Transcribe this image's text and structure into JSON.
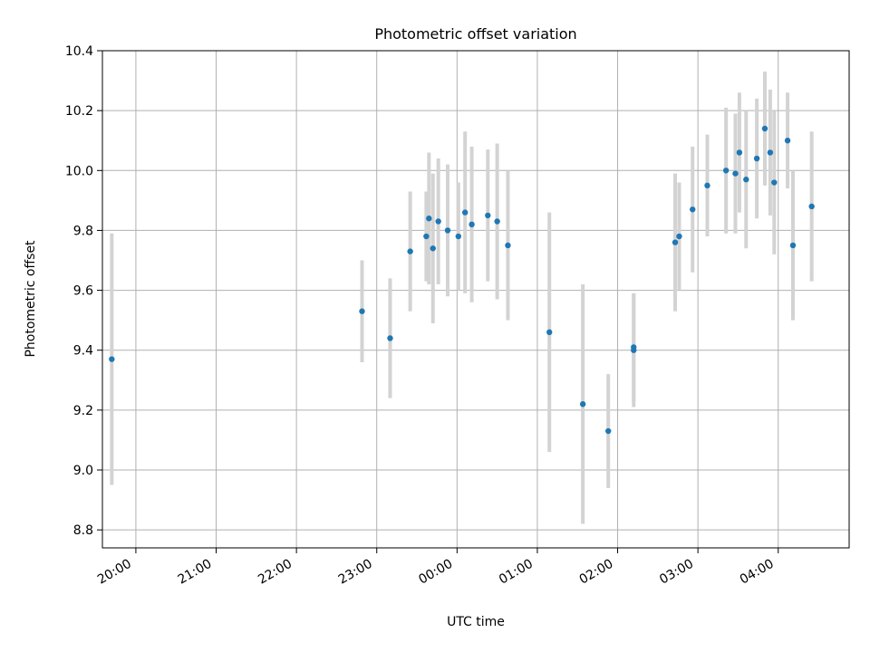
{
  "chart_data": {
    "type": "scatter",
    "title": "Photometric offset variation",
    "xlabel": "UTC time",
    "ylabel": "Photometric offset",
    "x_format": "HH:MM",
    "x_range": [
      "19:35",
      "04:53"
    ],
    "x_ticks": [
      "20:00",
      "21:00",
      "22:00",
      "23:00",
      "00:00",
      "01:00",
      "02:00",
      "03:00",
      "04:00"
    ],
    "ylim": [
      8.74,
      10.4
    ],
    "y_ticks": [
      8.8,
      9.0,
      9.2,
      9.4,
      9.6,
      9.8,
      10.0,
      10.2,
      10.4
    ],
    "grid": true,
    "colors": {
      "points": "#1f77b4",
      "errorbars": "#d3d3d3"
    },
    "series": [
      {
        "points": [
          {
            "x": "19:42",
            "y": 9.37,
            "err": 0.42
          },
          {
            "x": "22:49",
            "y": 9.53,
            "err": 0.17
          },
          {
            "x": "23:10",
            "y": 9.44,
            "err": 0.2
          },
          {
            "x": "23:25",
            "y": 9.73,
            "err": 0.2
          },
          {
            "x": "23:37",
            "y": 9.78,
            "err": 0.15
          },
          {
            "x": "23:39",
            "y": 9.84,
            "err": 0.22
          },
          {
            "x": "23:42",
            "y": 9.74,
            "err": 0.25
          },
          {
            "x": "23:46",
            "y": 9.83,
            "err": 0.21
          },
          {
            "x": "23:53",
            "y": 9.8,
            "err": 0.22
          },
          {
            "x": "00:01",
            "y": 9.78,
            "err": 0.18
          },
          {
            "x": "00:06",
            "y": 9.86,
            "err": 0.27
          },
          {
            "x": "00:11",
            "y": 9.82,
            "err": 0.26
          },
          {
            "x": "00:23",
            "y": 9.85,
            "err": 0.22
          },
          {
            "x": "00:30",
            "y": 9.83,
            "err": 0.26
          },
          {
            "x": "00:38",
            "y": 9.75,
            "err": 0.25
          },
          {
            "x": "01:09",
            "y": 9.46,
            "err": 0.4
          },
          {
            "x": "01:34",
            "y": 9.22,
            "err": 0.4
          },
          {
            "x": "01:53",
            "y": 9.13,
            "err": 0.19
          },
          {
            "x": "02:12",
            "y": 9.4,
            "err": 0.19
          },
          {
            "x": "02:12",
            "y": 9.41,
            "err": 0.18
          },
          {
            "x": "02:43",
            "y": 9.76,
            "err": 0.23
          },
          {
            "x": "02:46",
            "y": 9.78,
            "err": 0.18
          },
          {
            "x": "02:56",
            "y": 9.87,
            "err": 0.21
          },
          {
            "x": "03:07",
            "y": 9.95,
            "err": 0.17
          },
          {
            "x": "03:21",
            "y": 10.0,
            "err": 0.21
          },
          {
            "x": "03:28",
            "y": 9.99,
            "err": 0.2
          },
          {
            "x": "03:31",
            "y": 10.06,
            "err": 0.2
          },
          {
            "x": "03:36",
            "y": 9.97,
            "err": 0.23
          },
          {
            "x": "03:44",
            "y": 10.04,
            "err": 0.2
          },
          {
            "x": "03:50",
            "y": 10.14,
            "err": 0.19
          },
          {
            "x": "03:54",
            "y": 10.06,
            "err": 0.21
          },
          {
            "x": "03:57",
            "y": 9.96,
            "err": 0.24
          },
          {
            "x": "04:07",
            "y": 10.1,
            "err": 0.16
          },
          {
            "x": "04:11",
            "y": 9.75,
            "err": 0.25
          },
          {
            "x": "04:25",
            "y": 9.88,
            "err": 0.25
          }
        ]
      }
    ]
  }
}
